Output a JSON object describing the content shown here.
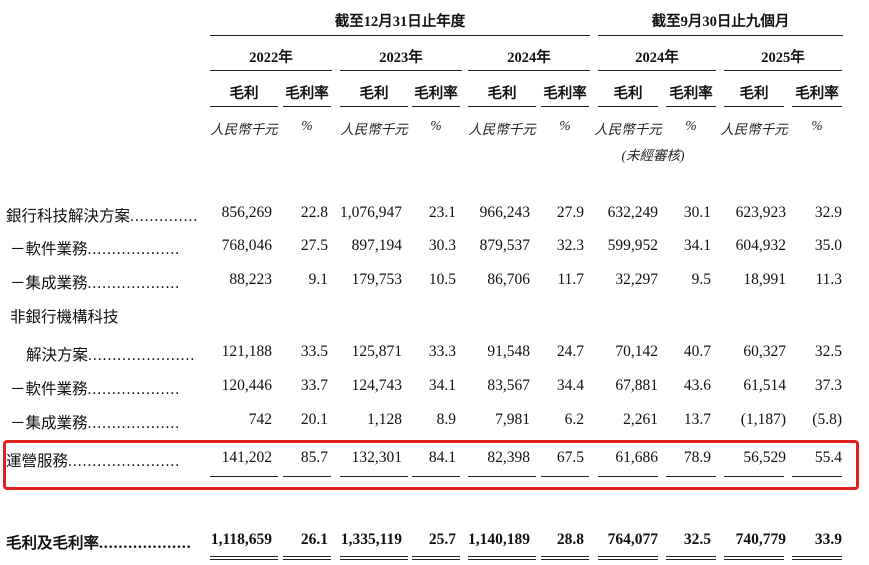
{
  "header": {
    "group_year_end": "截至12月31日止年度",
    "group_nine_months": "截至9月30日止九個月",
    "years": [
      "2022年",
      "2023年",
      "2024年",
      "2024年",
      "2025年"
    ],
    "col_gross_profit": "毛利",
    "col_margin": "毛利率",
    "unit_rmb": "人民幣千元",
    "unit_pct": "%",
    "unaudited": "(未經審核)"
  },
  "rows": [
    {
      "label": "銀行科技解決方案",
      "dots": "..............",
      "values": [
        "856,269",
        "22.8",
        "1,076,947",
        "23.1",
        "966,243",
        "27.9",
        "632,249",
        "30.1",
        "623,923",
        "32.9"
      ]
    },
    {
      "label": "－軟件業務",
      "dots": "...................",
      "values": [
        "768,046",
        "27.5",
        "897,194",
        "30.3",
        "879,537",
        "32.3",
        "599,952",
        "34.1",
        "604,932",
        "35.0"
      ]
    },
    {
      "label": "－集成業務",
      "dots": "...................",
      "values": [
        "88,223",
        "9.1",
        "179,753",
        "10.5",
        "86,706",
        "11.7",
        "32,297",
        "9.5",
        "18,991",
        "11.3"
      ]
    },
    {
      "label": "非銀行機構科技",
      "dots": "",
      "values": []
    },
    {
      "label": "解決方案",
      "dots": "......................",
      "values": [
        "121,188",
        "33.5",
        "125,871",
        "33.3",
        "91,548",
        "24.7",
        "70,142",
        "40.7",
        "60,327",
        "32.5"
      ]
    },
    {
      "label": "－軟件業務",
      "dots": "...................",
      "values": [
        "120,446",
        "33.7",
        "124,743",
        "34.1",
        "83,567",
        "34.4",
        "67,881",
        "43.6",
        "61,514",
        "37.3"
      ]
    },
    {
      "label": "－集成業務",
      "dots": "...................",
      "values": [
        "742",
        "20.1",
        "1,128",
        "8.9",
        "7,981",
        "6.2",
        "2,261",
        "13.7",
        "(1,187)",
        "(5.8)"
      ]
    },
    {
      "label": "運營服務",
      "dots": ".......................",
      "values": [
        "141,202",
        "85.7",
        "132,301",
        "84.1",
        "82,398",
        "67.5",
        "61,686",
        "78.9",
        "56,529",
        "55.4"
      ]
    }
  ],
  "total": {
    "label": "毛利及毛利率",
    "dots": "...................",
    "values": [
      "1,118,659",
      "26.1",
      "1,335,119",
      "25.7",
      "1,140,189",
      "28.8",
      "764,077",
      "32.5",
      "740,779",
      "33.9"
    ]
  },
  "colors": {
    "highlight_border": "#e02020"
  }
}
